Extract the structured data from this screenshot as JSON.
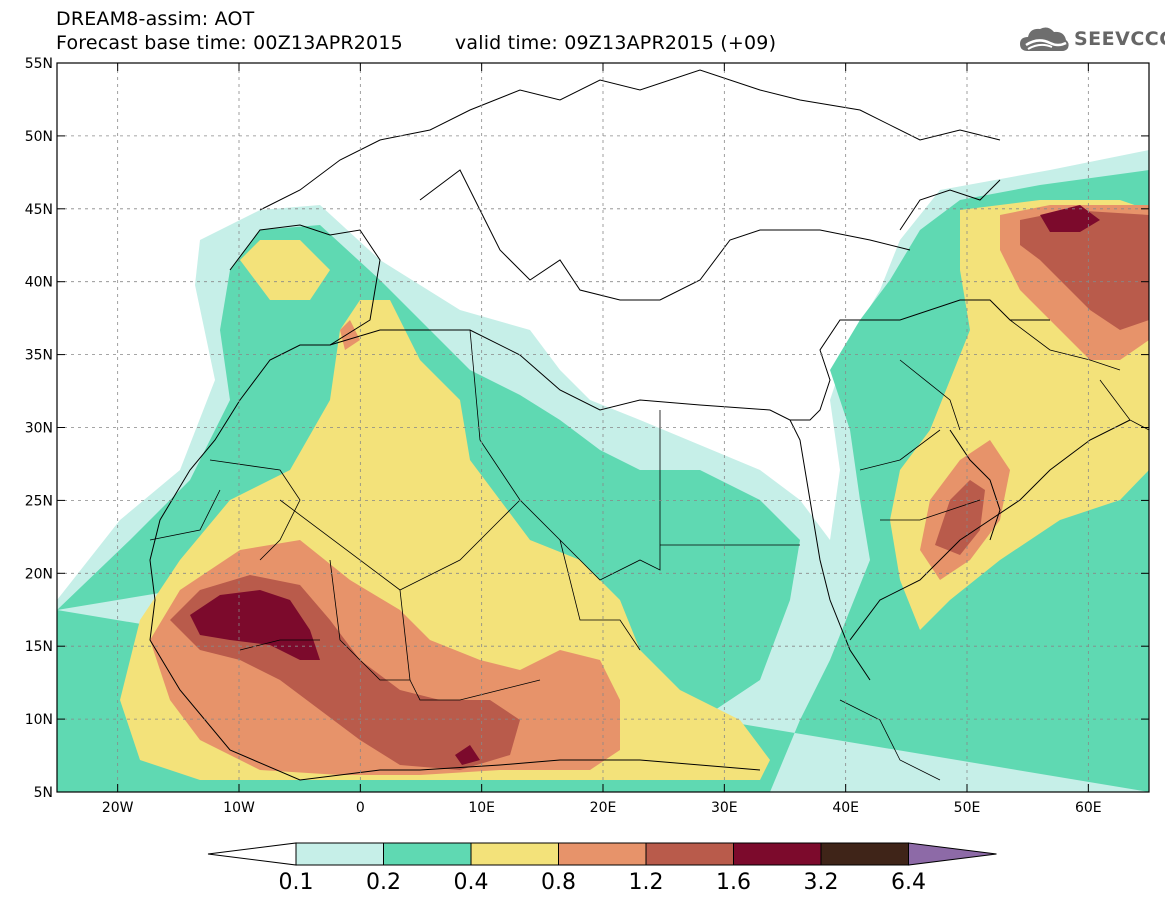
{
  "header": {
    "title": "DREAM8-assim: AOT",
    "base_time": "Forecast base time: 00Z13APR2015",
    "valid_time": "valid time: 09Z13APR2015 (+09)"
  },
  "logo": {
    "text": "SEEVCCC",
    "icon": "cloud-icon"
  },
  "map": {
    "lon_range": [
      -25,
      65
    ],
    "lat_range": [
      5,
      55
    ],
    "lat_ticks": [
      {
        "v": 55,
        "label": "55N"
      },
      {
        "v": 50,
        "label": "50N"
      },
      {
        "v": 45,
        "label": "45N"
      },
      {
        "v": 40,
        "label": "40N"
      },
      {
        "v": 35,
        "label": "35N"
      },
      {
        "v": 30,
        "label": "30N"
      },
      {
        "v": 25,
        "label": "25N"
      },
      {
        "v": 20,
        "label": "20N"
      },
      {
        "v": 15,
        "label": "15N"
      },
      {
        "v": 10,
        "label": "10N"
      },
      {
        "v": 5,
        "label": "5N"
      }
    ],
    "lon_ticks": [
      {
        "v": -20,
        "label": "20W"
      },
      {
        "v": -10,
        "label": "10W"
      },
      {
        "v": 0,
        "label": "0"
      },
      {
        "v": 10,
        "label": "10E"
      },
      {
        "v": 20,
        "label": "20E"
      },
      {
        "v": 30,
        "label": "30E"
      },
      {
        "v": 40,
        "label": "40E"
      },
      {
        "v": 50,
        "label": "50E"
      },
      {
        "v": 60,
        "label": "60E"
      }
    ],
    "grid": "dashed"
  },
  "colorbar": {
    "labels": [
      "0.1",
      "0.2",
      "0.4",
      "0.8",
      "1.2",
      "1.6",
      "3.2",
      "6.4"
    ],
    "colors": [
      "#ffffff",
      "#c6efe8",
      "#5fd9b2",
      "#f3e27a",
      "#e7936a",
      "#b95b4b",
      "#7c0a2c",
      "#3f2418",
      "#8d6aa7"
    ]
  },
  "levels": {
    "c1": "#c6efe8",
    "c2": "#5fd9b2",
    "c3": "#f3e27a",
    "c4": "#e7936a",
    "c5": "#b95b4b",
    "c6": "#7c0a2c"
  }
}
